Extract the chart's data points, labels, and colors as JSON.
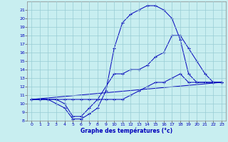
{
  "xlabel": "Graphe des températures (°c)",
  "bg_color": "#c8eef0",
  "line_color": "#0000bb",
  "xlim": [
    -0.5,
    23.5
  ],
  "ylim": [
    8,
    22
  ],
  "xticks": [
    0,
    1,
    2,
    3,
    4,
    5,
    6,
    7,
    8,
    9,
    10,
    11,
    12,
    13,
    14,
    15,
    16,
    17,
    18,
    19,
    20,
    21,
    22,
    23
  ],
  "yticks": [
    8,
    9,
    10,
    11,
    12,
    13,
    14,
    15,
    16,
    17,
    18,
    19,
    20,
    21
  ],
  "lines": [
    {
      "x": [
        0,
        1,
        2,
        3,
        4,
        5,
        6,
        7,
        8,
        9,
        10,
        11,
        12,
        13,
        14,
        15,
        16,
        17,
        18,
        19,
        20,
        21,
        22,
        23
      ],
      "y": [
        10.5,
        10.5,
        10.5,
        10.5,
        10.0,
        8.5,
        8.5,
        9.5,
        10.5,
        12.0,
        13.5,
        13.5,
        14.0,
        14.0,
        14.5,
        15.5,
        16.0,
        18.0,
        18.0,
        16.5,
        15.0,
        13.5,
        12.5,
        12.5
      ],
      "marker": true
    },
    {
      "x": [
        0,
        1,
        2,
        3,
        4,
        5,
        6,
        7,
        8,
        9,
        10,
        11,
        12,
        13,
        14,
        15,
        16,
        17,
        18,
        19,
        20,
        21,
        22,
        23
      ],
      "y": [
        10.5,
        10.5,
        10.5,
        10.0,
        9.5,
        8.2,
        8.2,
        8.8,
        9.5,
        11.5,
        16.5,
        19.5,
        20.5,
        21.0,
        21.5,
        21.5,
        21.0,
        20.0,
        17.5,
        13.5,
        12.5,
        12.5,
        12.5,
        12.5
      ],
      "marker": true
    },
    {
      "x": [
        0,
        1,
        2,
        3,
        4,
        5,
        6,
        7,
        8,
        9,
        10,
        11,
        12,
        13,
        14,
        15,
        16,
        17,
        18,
        19,
        20,
        21,
        22,
        23
      ],
      "y": [
        10.5,
        10.5,
        10.5,
        10.5,
        10.5,
        10.5,
        10.5,
        10.5,
        10.5,
        10.5,
        10.5,
        10.5,
        11.0,
        11.5,
        12.0,
        12.5,
        12.5,
        13.0,
        13.5,
        12.5,
        12.5,
        12.5,
        12.5,
        12.5
      ],
      "marker": true
    },
    {
      "x": [
        0,
        23
      ],
      "y": [
        10.5,
        12.5
      ],
      "marker": false
    }
  ]
}
